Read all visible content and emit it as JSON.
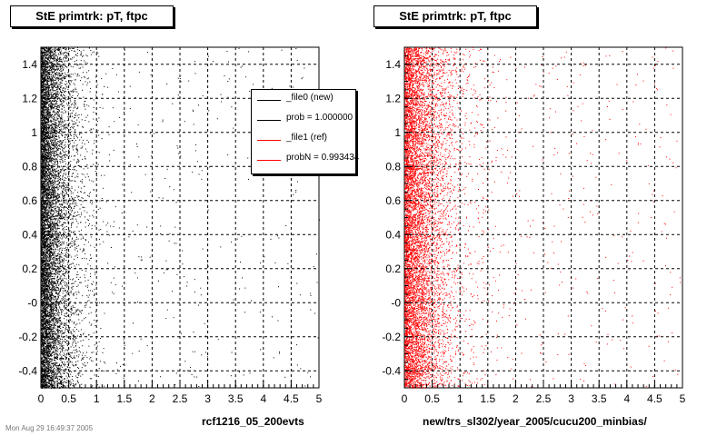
{
  "panels": [
    {
      "title": "StE primtrk: pT, ftpc",
      "xlabel": "rcf1216_05_200evts",
      "marker_color": "#000000"
    },
    {
      "title": "StE primtrk: pT, ftpc",
      "xlabel": "new/trs_sl302/year_2005/cucu200_minbias/",
      "marker_color": "#ff0000"
    }
  ],
  "legend": {
    "entries": [
      {
        "label": "_file0 (new)",
        "color": "#000000"
      },
      {
        "label": "prob = 1.000000",
        "color": "#000000"
      },
      {
        "label": "_file1 (ref)",
        "color": "#ff0000"
      },
      {
        "label": "probN = 0.993434",
        "color": "#ff0000"
      }
    ]
  },
  "footer": "Mon Aug 29 16:49:37 2005",
  "chart_data": [
    {
      "type": "scatter",
      "title": "StE primtrk: pT, ftpc",
      "xlabel": "rcf1216_05_200evts",
      "ylabel": "",
      "xlim": [
        0,
        5
      ],
      "ylim": [
        -0.5,
        1.5
      ],
      "x_ticks": [
        0,
        0.5,
        1,
        1.5,
        2,
        2.5,
        3,
        3.5,
        4,
        4.5,
        5
      ],
      "x_tick_labels": [
        "0",
        "0.5",
        "1",
        "1.5",
        "2",
        "2.5",
        "3",
        "3.5",
        "4",
        "4.5",
        "5"
      ],
      "y_ticks": [
        -0.4,
        -0.2,
        0,
        0.2,
        0.4,
        0.6,
        0.8,
        1,
        1.2,
        1.4
      ],
      "y_tick_labels": [
        "-0.4",
        "-0.2",
        "-0",
        "0.2",
        "0.4",
        "0.6",
        "0.8",
        "1",
        "1.2",
        "1.4"
      ],
      "grid": true,
      "legend_position": "top-right",
      "series": [
        {
          "name": "_file0 (new)",
          "color": "#000000",
          "x_range": [
            0,
            5
          ],
          "y_range": [
            -0.5,
            1.5
          ],
          "density": "high near x=0, decays toward x=1.5"
        }
      ]
    },
    {
      "type": "scatter",
      "title": "StE primtrk: pT, ftpc",
      "xlabel": "new/trs_sl302/year_2005/cucu200_minbias/",
      "ylabel": "",
      "xlim": [
        0,
        5
      ],
      "ylim": [
        -0.5,
        1.5
      ],
      "x_ticks": [
        0,
        0.5,
        1,
        1.5,
        2,
        2.5,
        3,
        3.5,
        4,
        4.5,
        5
      ],
      "x_tick_labels": [
        "0",
        "0.5",
        "1",
        "1.5",
        "2",
        "2.5",
        "3",
        "3.5",
        "4",
        "4.5",
        "5"
      ],
      "y_ticks": [
        -0.4,
        -0.2,
        0,
        0.2,
        0.4,
        0.6,
        0.8,
        1,
        1.2,
        1.4
      ],
      "y_tick_labels": [
        "-0.4",
        "-0.2",
        "-0",
        "0.2",
        "0.4",
        "0.6",
        "0.8",
        "1",
        "1.2",
        "1.4"
      ],
      "grid": true,
      "series": [
        {
          "name": "_file1 (ref)",
          "color": "#ff0000",
          "x_range": [
            0,
            5
          ],
          "y_range": [
            -0.5,
            1.5
          ],
          "density": "high near x=0, decays toward x=2"
        }
      ]
    }
  ]
}
